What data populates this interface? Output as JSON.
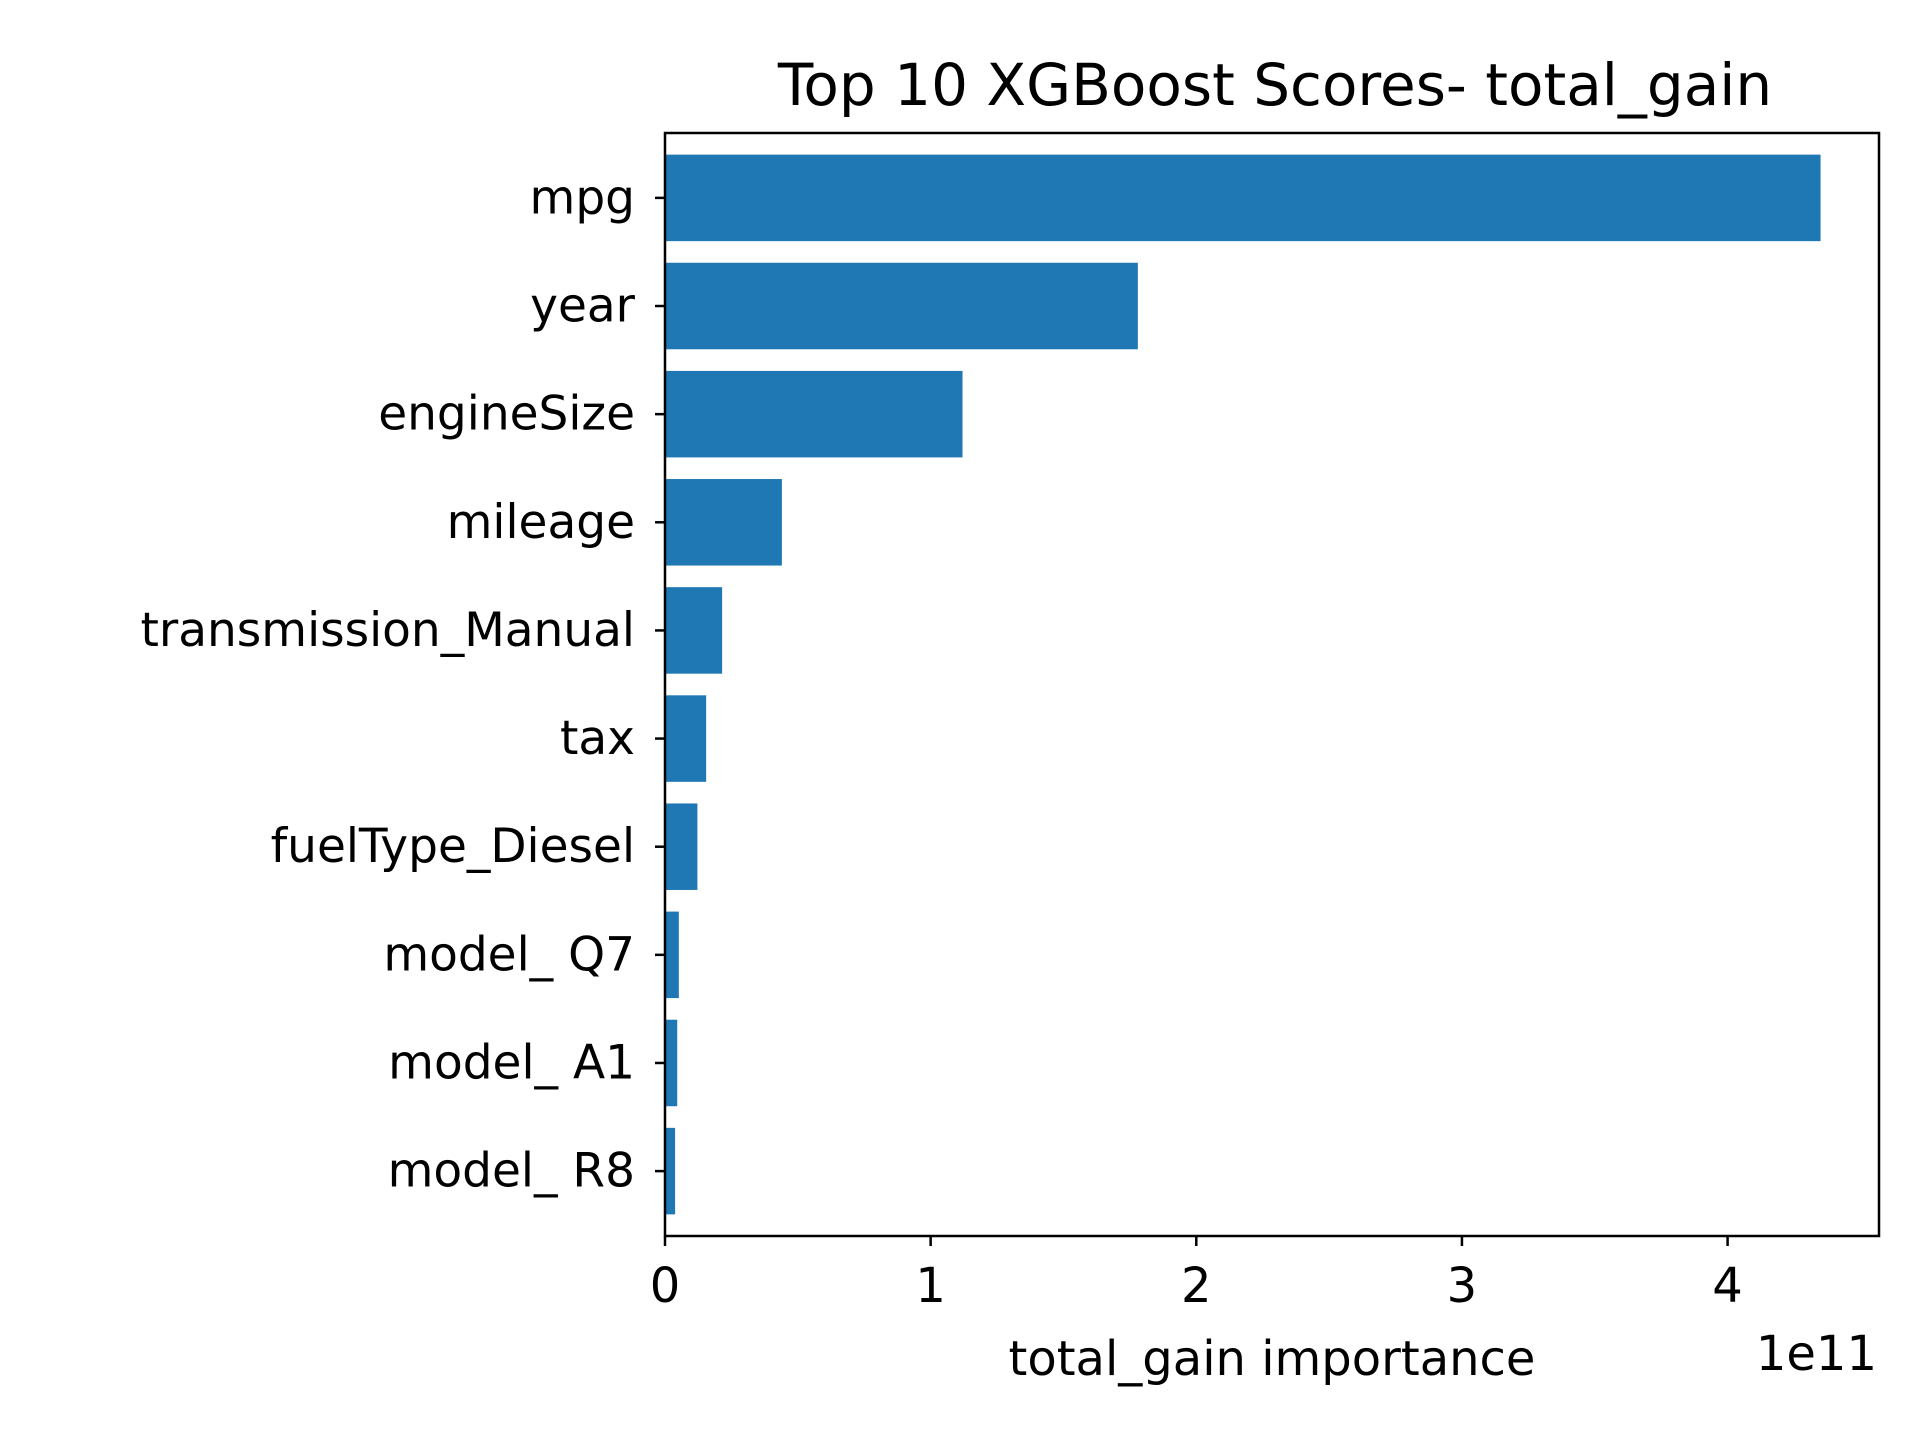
{
  "chart_data": {
    "type": "bar",
    "orientation": "horizontal",
    "title": "Top 10 XGBoost Scores- total_gain",
    "xlabel": "total_gain importance",
    "ylabel": "",
    "x_offset_label": "1e11",
    "x_scale_exponent": 11,
    "categories": [
      "mpg",
      "year",
      "engineSize",
      "mileage",
      "transmission_Manual",
      "tax",
      "fuelType_Diesel",
      "model_ Q7",
      "model_ A1",
      "model_ R8"
    ],
    "values": [
      435000000000,
      178000000000,
      112000000000,
      44000000000,
      21500000000,
      15500000000,
      12200000000,
      5200000000,
      4600000000,
      3800000000
    ],
    "xlim": [
      0,
      4.57
    ],
    "xticks": [
      0,
      1,
      2,
      3,
      4
    ],
    "xtick_labels": [
      "0",
      "1",
      "2",
      "3",
      "4"
    ],
    "bar_color": "#1f77b4",
    "grid": false,
    "legend": "none"
  }
}
